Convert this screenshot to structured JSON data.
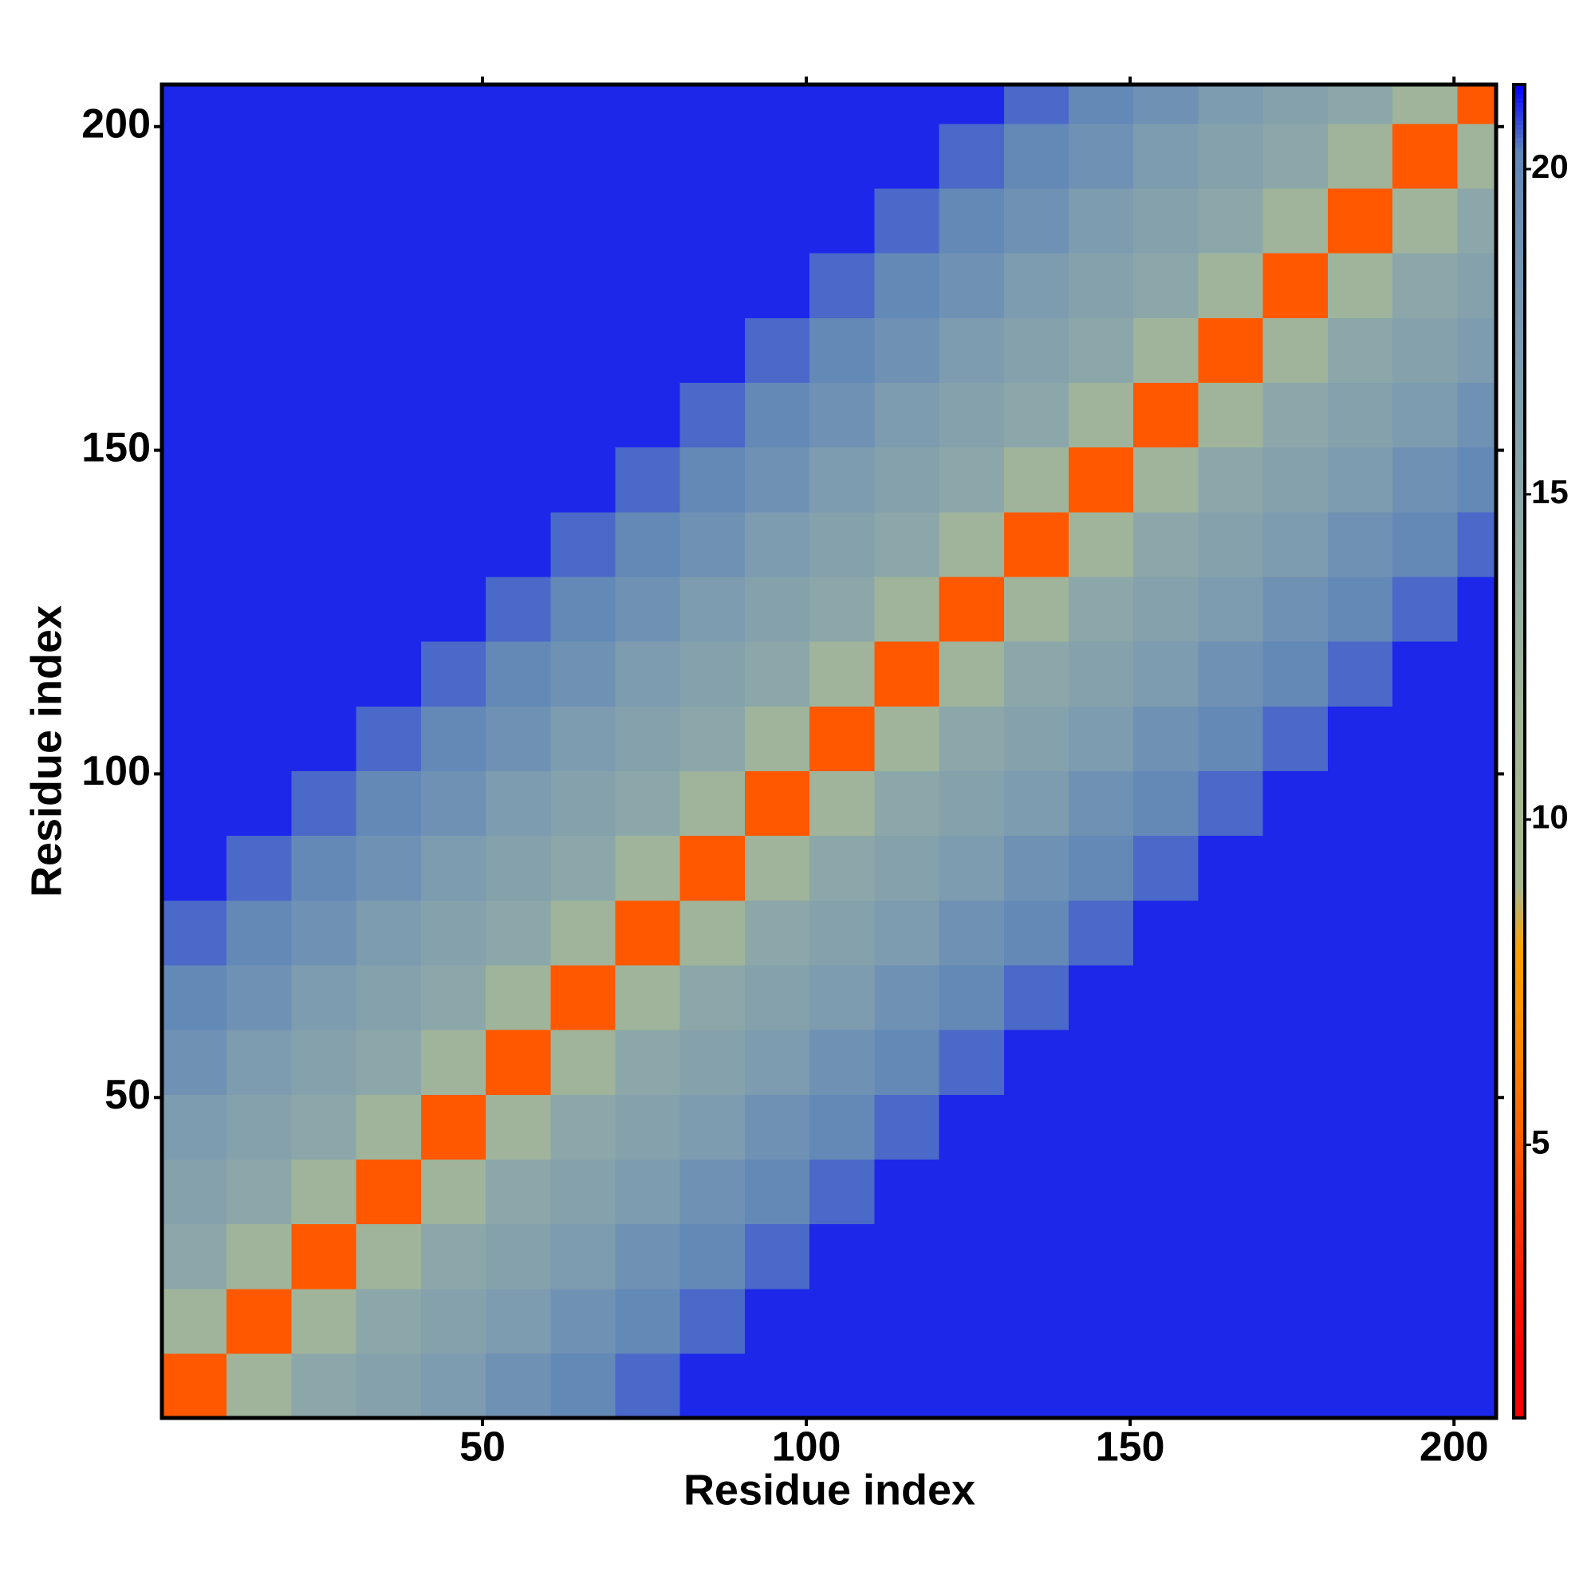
{
  "chart_data": {
    "type": "heatmap",
    "xlabel": "Residue index",
    "ylabel": "Residue index",
    "xlim": [
      0.5,
      206.5
    ],
    "ylim": [
      0.5,
      206.5
    ],
    "xticks": [
      50,
      100,
      150,
      200
    ],
    "yticks": [
      50,
      100,
      150,
      200
    ],
    "xbins": [
      0.5,
      10.5,
      20.5,
      30.5,
      40.5,
      50.5,
      60.5,
      70.5,
      80.5,
      90.5,
      100.5,
      110.5,
      120.5,
      130.5,
      140.5,
      150.5,
      160.5,
      170.5,
      180.5,
      190.5,
      200.5,
      206.5
    ],
    "ybins": [
      0.5,
      10.5,
      20.5,
      30.5,
      40.5,
      50.5,
      60.5,
      70.5,
      80.5,
      90.5,
      100.5,
      110.5,
      120.5,
      130.5,
      140.5,
      150.5,
      160.5,
      170.5,
      180.5,
      190.5,
      200.5,
      206.5
    ],
    "zlim": [
      0.8,
      21.3
    ],
    "zticks": [
      5,
      10,
      15,
      20
    ],
    "colors": [
      "#ff0000",
      "#ff0000",
      "#ff1a00",
      "#ff3300",
      "#ff5500",
      "#ff7700",
      "#ff9000",
      "#ffa000",
      "#a7b98e",
      "#a6b893",
      "#a3b796",
      "#9fb49a",
      "#98b0a0",
      "#91aba6",
      "#8aa6aa",
      "#83a0ad",
      "#7c9bb0",
      "#7596b2",
      "#6d90b4",
      "#5f86b8",
      "#0000ff"
    ],
    "z": [
      [
        5,
        12,
        15,
        16,
        17,
        19,
        20,
        20.5,
        21,
        21,
        21,
        21,
        21,
        21,
        21,
        21,
        21,
        21,
        21,
        21,
        21
      ],
      [
        12,
        5,
        12,
        15,
        16,
        17,
        19,
        20,
        20.5,
        21,
        21,
        21,
        21,
        21,
        21,
        21,
        21,
        21,
        21,
        21,
        21
      ],
      [
        15,
        12,
        5,
        12,
        15,
        16,
        17,
        19,
        20,
        20.5,
        21,
        21,
        21,
        21,
        21,
        21,
        21,
        21,
        21,
        21,
        21
      ],
      [
        16,
        15,
        12,
        5,
        12,
        15,
        16,
        17,
        19,
        20,
        20.5,
        21,
        21,
        21,
        21,
        21,
        21,
        21,
        21,
        21,
        21
      ],
      [
        17,
        16,
        15,
        12,
        5,
        12,
        15,
        16,
        17,
        19,
        20,
        20.5,
        21,
        21,
        21,
        21,
        21,
        21,
        21,
        21,
        21
      ],
      [
        19,
        17,
        16,
        15,
        12,
        5,
        12,
        15,
        16,
        17,
        19,
        20,
        20.5,
        21,
        21,
        21,
        21,
        21,
        21,
        21,
        21
      ],
      [
        20,
        19,
        17,
        16,
        15,
        12,
        5,
        12,
        15,
        16,
        17,
        19,
        20,
        20.5,
        21,
        21,
        21,
        21,
        21,
        21,
        21
      ],
      [
        20.5,
        20,
        19,
        17,
        16,
        15,
        12,
        5,
        12,
        15,
        16,
        17,
        19,
        20,
        20.5,
        21,
        21,
        21,
        21,
        21,
        21
      ],
      [
        21,
        20.5,
        20,
        19,
        17,
        16,
        15,
        12,
        5,
        12,
        15,
        16,
        17,
        19,
        20,
        20.5,
        21,
        21,
        21,
        21,
        21
      ],
      [
        21,
        21,
        20.5,
        20,
        19,
        17,
        16,
        15,
        12,
        5,
        12,
        15,
        16,
        17,
        19,
        20,
        20.5,
        21,
        21,
        21,
        21
      ],
      [
        21,
        21,
        21,
        20.5,
        20,
        19,
        17,
        16,
        15,
        12,
        5,
        12,
        15,
        16,
        17,
        19,
        20,
        20.5,
        21,
        21,
        21
      ],
      [
        21,
        21,
        21,
        21,
        20.5,
        20,
        19,
        17,
        16,
        15,
        12,
        5,
        12,
        15,
        16,
        17,
        19,
        20,
        20.5,
        21,
        21
      ],
      [
        21,
        21,
        21,
        21,
        21,
        20.5,
        20,
        19,
        17,
        16,
        15,
        12,
        5,
        12,
        15,
        16,
        17,
        19,
        20,
        20.5,
        21
      ],
      [
        21,
        21,
        21,
        21,
        21,
        21,
        20.5,
        20,
        19,
        17,
        16,
        15,
        12,
        5,
        12,
        15,
        16,
        17,
        19,
        20,
        20.5
      ],
      [
        21,
        21,
        21,
        21,
        21,
        21,
        21,
        20.5,
        20,
        19,
        17,
        16,
        15,
        12,
        5,
        12,
        15,
        16,
        17,
        19,
        20
      ],
      [
        21,
        21,
        21,
        21,
        21,
        21,
        21,
        21,
        20.5,
        20,
        19,
        17,
        16,
        15,
        12,
        5,
        12,
        15,
        16,
        17,
        19
      ],
      [
        21,
        21,
        21,
        21,
        21,
        21,
        21,
        21,
        21,
        20.5,
        20,
        19,
        17,
        16,
        15,
        12,
        5,
        12,
        15,
        16,
        17
      ],
      [
        21,
        21,
        21,
        21,
        21,
        21,
        21,
        21,
        21,
        21,
        20.5,
        20,
        19,
        17,
        16,
        15,
        12,
        5,
        12,
        15,
        16
      ],
      [
        21,
        21,
        21,
        21,
        21,
        21,
        21,
        21,
        21,
        21,
        21,
        20.5,
        20,
        19,
        17,
        16,
        15,
        12,
        5,
        12,
        15
      ],
      [
        21,
        21,
        21,
        21,
        21,
        21,
        21,
        21,
        21,
        21,
        21,
        21,
        20.5,
        20,
        19,
        17,
        16,
        15,
        12,
        5,
        12
      ],
      [
        21,
        21,
        21,
        21,
        21,
        21,
        21,
        21,
        21,
        21,
        21,
        21,
        21,
        20.5,
        20,
        19,
        17,
        16,
        15,
        12,
        5
      ]
    ]
  }
}
